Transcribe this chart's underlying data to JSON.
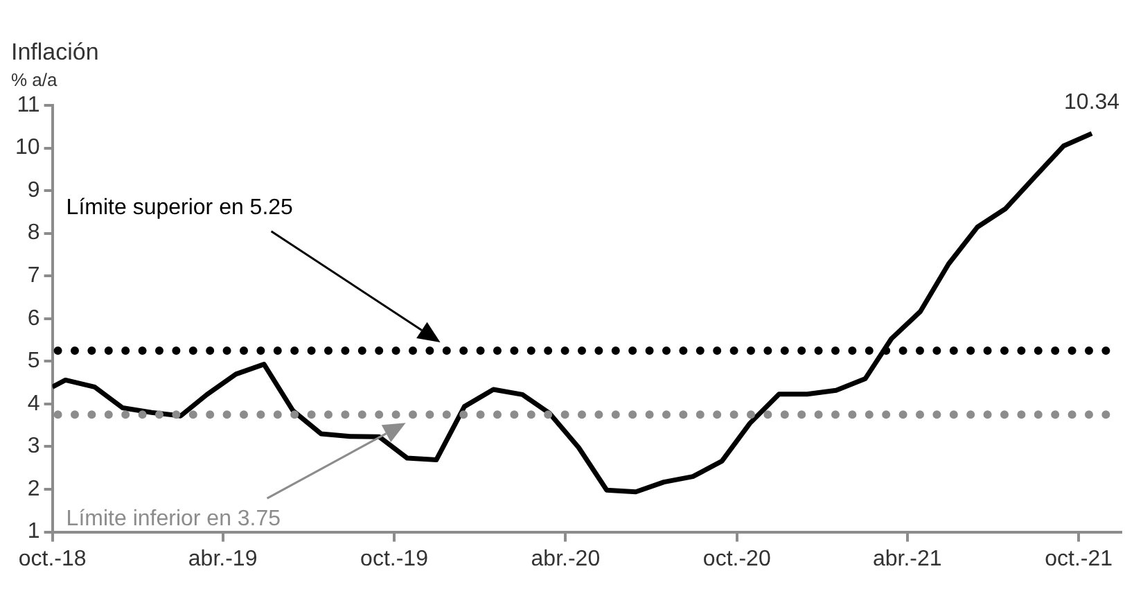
{
  "chart_data": {
    "type": "line",
    "title": "Inflación",
    "subtitle": "% a/a",
    "x": [
      "2018-10-01",
      "2018-10-15",
      "2018-11-15",
      "2018-12-15",
      "2019-01-15",
      "2019-02-15",
      "2019-03-15",
      "2019-04-15",
      "2019-05-15",
      "2019-06-15",
      "2019-07-15",
      "2019-08-15",
      "2019-09-15",
      "2019-10-15",
      "2019-11-15",
      "2019-12-15",
      "2020-01-15",
      "2020-02-15",
      "2020-03-15",
      "2020-04-15",
      "2020-05-15",
      "2020-06-15",
      "2020-07-15",
      "2020-08-15",
      "2020-09-15",
      "2020-10-15",
      "2020-11-15",
      "2020-12-15",
      "2021-01-15",
      "2021-02-15",
      "2021-03-15",
      "2021-04-15",
      "2021-05-15",
      "2021-06-15",
      "2021-07-15",
      "2021-08-15",
      "2021-09-15",
      "2021-10-15"
    ],
    "series": [
      {
        "color": "#000000",
        "values": [
          4.4,
          4.56,
          4.4,
          3.91,
          3.8,
          3.72,
          4.22,
          4.7,
          4.93,
          3.84,
          3.3,
          3.24,
          3.23,
          2.73,
          2.69,
          3.94,
          4.34,
          4.22,
          3.78,
          2.98,
          1.98,
          1.94,
          2.17,
          2.3,
          2.66,
          3.55,
          4.23,
          4.23,
          4.32,
          4.59,
          5.53,
          6.17,
          7.28,
          8.15,
          8.58,
          9.32,
          10.05,
          10.34
        ]
      }
    ],
    "xlim": [
      "2018-10-01",
      "2021-11-15"
    ],
    "xticks": [
      {
        "value": "2018-10-01",
        "label": "oct.-18"
      },
      {
        "value": "2019-04-01",
        "label": "abr.-19"
      },
      {
        "value": "2019-10-01",
        "label": "oct.-19"
      },
      {
        "value": "2020-04-01",
        "label": "abr.-20"
      },
      {
        "value": "2020-10-01",
        "label": "oct.-20"
      },
      {
        "value": "2021-04-01",
        "label": "abr.-21"
      },
      {
        "value": "2021-10-01",
        "label": "oct.-21"
      }
    ],
    "ylim": [
      1,
      11
    ],
    "yticks": [
      1,
      2,
      3,
      4,
      5,
      6,
      7,
      8,
      9,
      10,
      11
    ],
    "ref_lines": [
      {
        "axis": "y",
        "value": 5.25,
        "label": "Límite superior en 5.25",
        "color": "#000000",
        "line_style": "dotted"
      },
      {
        "axis": "y",
        "value": 3.75,
        "label": "Límite inferior en 3.75",
        "color": "#8c8c8c",
        "line_style": "dotted"
      }
    ],
    "annotations": [
      {
        "text": "10.34",
        "x": "2021-10-15",
        "y": 10.34
      }
    ],
    "grid": false,
    "legend": false,
    "marker": "none",
    "line_style": "solid"
  }
}
